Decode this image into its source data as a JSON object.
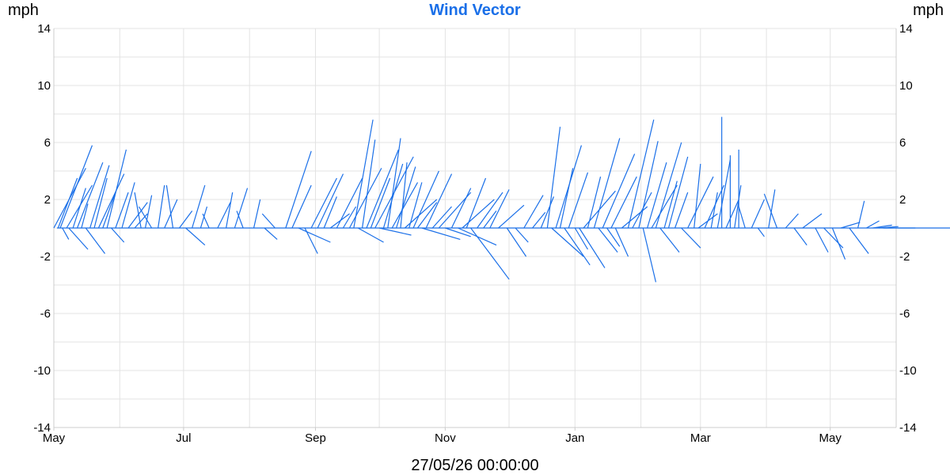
{
  "colors": {
    "series": "#1a6fe8",
    "title": "#1a6fe8",
    "grid": "#e3e3e3",
    "axis": "#cccccc"
  },
  "header": {
    "title": "Wind Vector",
    "unit_left": "mph",
    "unit_right": "mph"
  },
  "footer": {
    "timestamp": "27/05/26 00:00:00"
  },
  "chart_data": {
    "type": "line",
    "title": "Wind Vector",
    "ylabel": "mph",
    "ylim": [
      -14,
      14
    ],
    "yticks": [
      "14",
      "10",
      "6",
      "2",
      "-2",
      "-6",
      "-10",
      "-14"
    ],
    "ytick_values": [
      14,
      10,
      6,
      2,
      -2,
      -6,
      -10,
      -14
    ],
    "xtick_labels": [
      "May",
      "Jul",
      "Sep",
      "Nov",
      "Jan",
      "Mar",
      "May"
    ],
    "xtick_dates": [
      "2025-05-01",
      "2025-07-01",
      "2025-09-01",
      "2025-11-01",
      "2026-01-01",
      "2026-03-01",
      "2026-05-01"
    ],
    "xlim": [
      "2025-05-01",
      "2026-06-01"
    ],
    "grid": true,
    "series": [
      {
        "vectors": [
          {
            "date": "2025-05-01",
            "dx": 5,
            "dy": 4.2
          },
          {
            "date": "2025-05-03",
            "dx": 3,
            "dy": 3.5
          },
          {
            "date": "2025-05-04",
            "dx": 5,
            "dy": 5.8
          },
          {
            "date": "2025-05-05",
            "dx": 1,
            "dy": -0.8
          },
          {
            "date": "2025-05-07",
            "dx": 4,
            "dy": 3.0
          },
          {
            "date": "2025-05-08",
            "dx": 3,
            "dy": -1.5
          },
          {
            "date": "2025-05-10",
            "dx": 2,
            "dy": 2.8
          },
          {
            "date": "2025-05-12",
            "dx": 4,
            "dy": 4.6
          },
          {
            "date": "2025-05-14",
            "dx": 1,
            "dy": 1.7
          },
          {
            "date": "2025-05-16",
            "dx": 3,
            "dy": -1.8
          },
          {
            "date": "2025-05-18",
            "dx": 3,
            "dy": 4.4
          },
          {
            "date": "2025-05-20",
            "dx": 2,
            "dy": 3.5
          },
          {
            "date": "2025-05-22",
            "dx": 4,
            "dy": 3.8
          },
          {
            "date": "2025-05-24",
            "dx": 2,
            "dy": 2.5
          },
          {
            "date": "2025-05-26",
            "dx": 3,
            "dy": 5.5
          },
          {
            "date": "2025-05-28",
            "dx": 2,
            "dy": -1.0
          },
          {
            "date": "2025-05-30",
            "dx": 2,
            "dy": 2.5
          },
          {
            "date": "2025-06-02",
            "dx": 2,
            "dy": 3.2
          },
          {
            "date": "2025-06-05",
            "dx": 3,
            "dy": 1.8
          },
          {
            "date": "2025-06-08",
            "dx": 2,
            "dy": 1.0
          },
          {
            "date": "2025-06-11",
            "dx": -1,
            "dy": 2.5
          },
          {
            "date": "2025-06-13",
            "dx": 1,
            "dy": 2.3
          },
          {
            "date": "2025-06-16",
            "dx": -2,
            "dy": 1.5
          },
          {
            "date": "2025-06-19",
            "dx": 1,
            "dy": 3.0
          },
          {
            "date": "2025-06-22",
            "dx": 2,
            "dy": 2.0
          },
          {
            "date": "2025-06-26",
            "dx": -1,
            "dy": 3.0
          },
          {
            "date": "2025-06-29",
            "dx": 2,
            "dy": 1.2
          },
          {
            "date": "2025-07-02",
            "dx": 3,
            "dy": -1.2
          },
          {
            "date": "2025-07-05",
            "dx": 2,
            "dy": 3.0
          },
          {
            "date": "2025-07-09",
            "dx": 1,
            "dy": 1.5
          },
          {
            "date": "2025-07-13",
            "dx": -1,
            "dy": 1.0
          },
          {
            "date": "2025-07-17",
            "dx": 2,
            "dy": 1.8
          },
          {
            "date": "2025-07-21",
            "dx": 1,
            "dy": 2.5
          },
          {
            "date": "2025-07-25",
            "dx": 2,
            "dy": 2.8
          },
          {
            "date": "2025-07-29",
            "dx": -1,
            "dy": 1.2
          },
          {
            "date": "2025-08-03",
            "dx": 1,
            "dy": 2.0
          },
          {
            "date": "2025-08-08",
            "dx": 2,
            "dy": -0.8
          },
          {
            "date": "2025-08-13",
            "dx": -2,
            "dy": 1.0
          },
          {
            "date": "2025-08-18",
            "dx": 4,
            "dy": 5.4
          },
          {
            "date": "2025-08-21",
            "dx": 3,
            "dy": 3.0
          },
          {
            "date": "2025-08-24",
            "dx": 5,
            "dy": -1.0
          },
          {
            "date": "2025-08-27",
            "dx": 2,
            "dy": -1.8
          },
          {
            "date": "2025-08-30",
            "dx": 4,
            "dy": 3.5
          },
          {
            "date": "2025-09-02",
            "dx": 4,
            "dy": 3.8
          },
          {
            "date": "2025-09-05",
            "dx": 2,
            "dy": 2.2
          },
          {
            "date": "2025-09-08",
            "dx": 3,
            "dy": 1.0
          },
          {
            "date": "2025-09-11",
            "dx": 4,
            "dy": 3.5
          },
          {
            "date": "2025-09-14",
            "dx": 2,
            "dy": 1.5
          },
          {
            "date": "2025-09-17",
            "dx": 5,
            "dy": 4.2
          },
          {
            "date": "2025-09-19",
            "dx": 3,
            "dy": 7.6
          },
          {
            "date": "2025-09-21",
            "dx": 4,
            "dy": -1.0
          },
          {
            "date": "2025-09-23",
            "dx": 2,
            "dy": 6.2
          },
          {
            "date": "2025-09-25",
            "dx": 5,
            "dy": 5.5
          },
          {
            "date": "2025-09-27",
            "dx": 3,
            "dy": 3.5
          },
          {
            "date": "2025-09-29",
            "dx": 6,
            "dy": 5.0
          },
          {
            "date": "2025-10-01",
            "dx": 5,
            "dy": -0.5
          },
          {
            "date": "2025-10-03",
            "dx": 3,
            "dy": 4.5
          },
          {
            "date": "2025-10-05",
            "dx": 2,
            "dy": 6.3
          },
          {
            "date": "2025-10-07",
            "dx": 4,
            "dy": 3.2
          },
          {
            "date": "2025-10-09",
            "dx": 3,
            "dy": 4.3
          },
          {
            "date": "2025-10-11",
            "dx": 1,
            "dy": 4.6
          },
          {
            "date": "2025-10-13",
            "dx": 5,
            "dy": 2.0
          },
          {
            "date": "2025-10-15",
            "dx": 2,
            "dy": 3.2
          },
          {
            "date": "2025-10-17",
            "dx": 4,
            "dy": 4.0
          },
          {
            "date": "2025-10-19",
            "dx": 3,
            "dy": 1.8
          },
          {
            "date": "2025-10-21",
            "dx": 6,
            "dy": -0.8
          },
          {
            "date": "2025-10-23",
            "dx": 4,
            "dy": 3.8
          },
          {
            "date": "2025-10-26",
            "dx": 3,
            "dy": 1.5
          },
          {
            "date": "2025-10-29",
            "dx": 5,
            "dy": 2.5
          },
          {
            "date": "2025-11-01",
            "dx": 4,
            "dy": -0.6
          },
          {
            "date": "2025-11-04",
            "dx": 3,
            "dy": 2.8
          },
          {
            "date": "2025-11-07",
            "dx": 6,
            "dy": -1.2
          },
          {
            "date": "2025-11-09",
            "dx": 5,
            "dy": 2.0
          },
          {
            "date": "2025-11-11",
            "dx": 3,
            "dy": 3.5
          },
          {
            "date": "2025-11-13",
            "dx": 6,
            "dy": -3.6
          },
          {
            "date": "2025-11-16",
            "dx": 4,
            "dy": 2.5
          },
          {
            "date": "2025-11-19",
            "dx": 2,
            "dy": 1.2
          },
          {
            "date": "2025-11-22",
            "dx": 3,
            "dy": 2.7
          },
          {
            "date": "2025-11-26",
            "dx": 4,
            "dy": 1.6
          },
          {
            "date": "2025-11-30",
            "dx": 3,
            "dy": -2.0
          },
          {
            "date": "2025-12-04",
            "dx": 2,
            "dy": -1.0
          },
          {
            "date": "2025-12-08",
            "dx": 3,
            "dy": 2.3
          },
          {
            "date": "2025-12-12",
            "dx": 2,
            "dy": 1.1
          },
          {
            "date": "2025-12-16",
            "dx": 2,
            "dy": 2.2
          },
          {
            "date": "2025-12-19",
            "dx": 2,
            "dy": 7.1
          },
          {
            "date": "2025-12-21",
            "dx": 5,
            "dy": -2.0
          },
          {
            "date": "2025-12-23",
            "dx": 4,
            "dy": 5.8
          },
          {
            "date": "2025-12-25",
            "dx": 2,
            "dy": 4.2
          },
          {
            "date": "2025-12-27",
            "dx": 4,
            "dy": -2.6
          },
          {
            "date": "2025-12-29",
            "dx": 3,
            "dy": 3.9
          },
          {
            "date": "2026-01-01",
            "dx": 2,
            "dy": -1.5
          },
          {
            "date": "2026-01-03",
            "dx": 4,
            "dy": -2.8
          },
          {
            "date": "2026-01-05",
            "dx": 5,
            "dy": 2.6
          },
          {
            "date": "2026-01-07",
            "dx": 2,
            "dy": 3.6
          },
          {
            "date": "2026-01-10",
            "dx": 4,
            "dy": 6.3
          },
          {
            "date": "2026-01-12",
            "dx": 3,
            "dy": -1.7
          },
          {
            "date": "2026-01-14",
            "dx": 5,
            "dy": 5.2
          },
          {
            "date": "2026-01-16",
            "dx": 2,
            "dy": -1.3
          },
          {
            "date": "2026-01-18",
            "dx": 4,
            "dy": 3.6
          },
          {
            "date": "2026-01-20",
            "dx": 2,
            "dy": -2.0
          },
          {
            "date": "2026-01-23",
            "dx": 4,
            "dy": 1.5
          },
          {
            "date": "2026-01-26",
            "dx": 4,
            "dy": 7.6
          },
          {
            "date": "2026-01-28",
            "dx": 3,
            "dy": 2.5
          },
          {
            "date": "2026-01-31",
            "dx": 3,
            "dy": 6.1
          },
          {
            "date": "2026-02-02",
            "dx": 2,
            "dy": -3.8
          },
          {
            "date": "2026-02-04",
            "dx": 3,
            "dy": 4.6
          },
          {
            "date": "2026-02-06",
            "dx": 4,
            "dy": 3.0
          },
          {
            "date": "2026-02-08",
            "dx": 4,
            "dy": 6.0
          },
          {
            "date": "2026-02-10",
            "dx": 3,
            "dy": -1.7
          },
          {
            "date": "2026-02-12",
            "dx": 2,
            "dy": 3.3
          },
          {
            "date": "2026-02-14",
            "dx": 3,
            "dy": 5.0
          },
          {
            "date": "2026-02-17",
            "dx": 2,
            "dy": 2.5
          },
          {
            "date": "2026-02-20",
            "dx": 3,
            "dy": -1.4
          },
          {
            "date": "2026-02-23",
            "dx": 4,
            "dy": 3.6
          },
          {
            "date": "2026-02-26",
            "dx": 1,
            "dy": 4.5
          },
          {
            "date": "2026-02-28",
            "dx": 3,
            "dy": 1.0
          },
          {
            "date": "2026-03-03",
            "dx": 3,
            "dy": 3.0
          },
          {
            "date": "2026-03-06",
            "dx": 1,
            "dy": 2.5
          },
          {
            "date": "2026-03-09",
            "dx": 2,
            "dy": 4.8
          },
          {
            "date": "2026-03-11",
            "dx": 0,
            "dy": 7.8
          },
          {
            "date": "2026-03-13",
            "dx": 2,
            "dy": 2.0
          },
          {
            "date": "2026-03-15",
            "dx": 0,
            "dy": 5.1
          },
          {
            "date": "2026-03-17",
            "dx": 1,
            "dy": 3.0
          },
          {
            "date": "2026-03-19",
            "dx": 0,
            "dy": 5.5
          },
          {
            "date": "2026-03-22",
            "dx": -1,
            "dy": 1.5
          },
          {
            "date": "2026-03-25",
            "dx": 2,
            "dy": 2.0
          },
          {
            "date": "2026-03-28",
            "dx": 1,
            "dy": -0.6
          },
          {
            "date": "2026-04-02",
            "dx": 1,
            "dy": 2.7
          },
          {
            "date": "2026-04-06",
            "dx": -2,
            "dy": 2.4
          },
          {
            "date": "2026-04-10",
            "dx": 2,
            "dy": 1.0
          },
          {
            "date": "2026-04-14",
            "dx": 2,
            "dy": -1.2
          },
          {
            "date": "2026-04-18",
            "dx": 3,
            "dy": 1.0
          },
          {
            "date": "2026-04-24",
            "dx": 2,
            "dy": -1.7
          },
          {
            "date": "2026-04-28",
            "dx": 3,
            "dy": -1.4
          },
          {
            "date": "2026-05-02",
            "dx": 2,
            "dy": -2.2
          },
          {
            "date": "2026-05-06",
            "dx": 3,
            "dy": 0.4
          },
          {
            "date": "2026-05-10",
            "dx": 3,
            "dy": -1.8
          },
          {
            "date": "2026-05-14",
            "dx": 1,
            "dy": 1.9
          },
          {
            "date": "2026-05-18",
            "dx": 2,
            "dy": 0.5
          },
          {
            "date": "2026-05-21",
            "dx": 3,
            "dy": 0.2
          },
          {
            "date": "2026-05-24",
            "dx": 3,
            "dy": 0.1
          },
          {
            "date": "2026-05-26",
            "dx": 5,
            "dy": 0.0
          }
        ]
      }
    ]
  }
}
